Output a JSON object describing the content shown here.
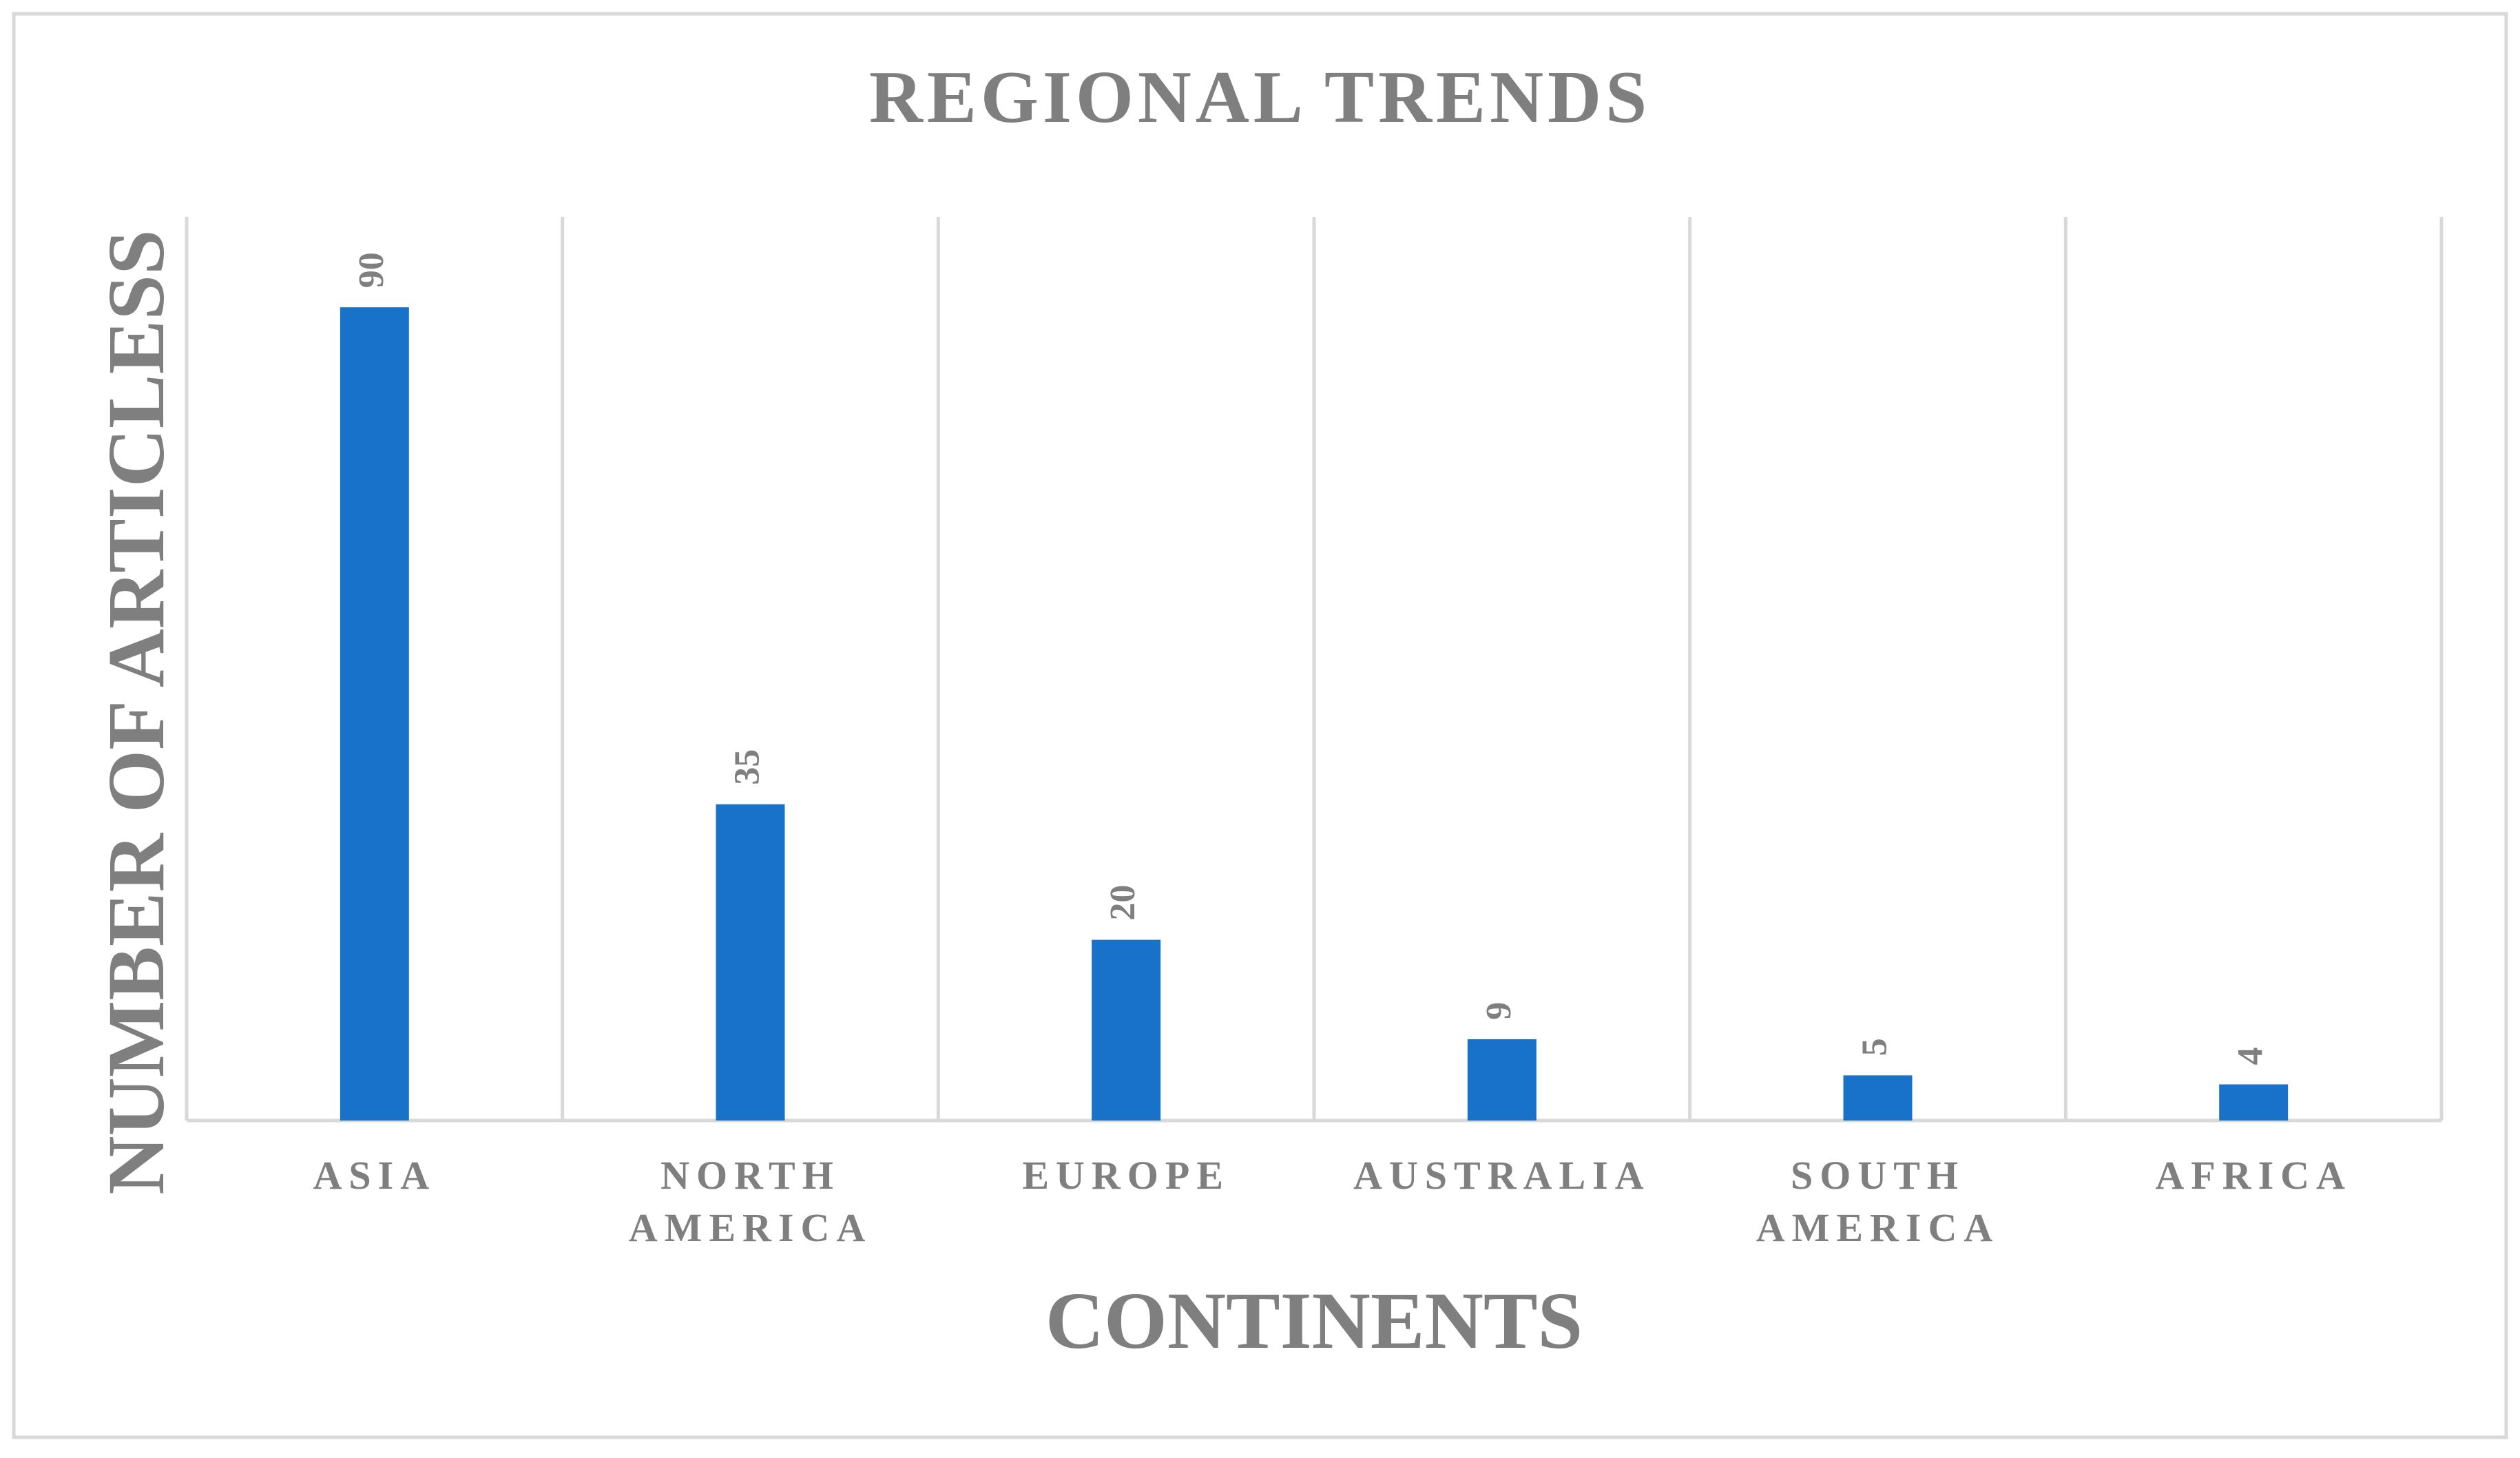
{
  "chart_data": {
    "type": "bar",
    "title": "REGIONAL TRENDS",
    "x_label": "CONTINENTS",
    "y_label": "NUMBER OF ARTICLESS",
    "categories": [
      "ASIA",
      "NORTH AMERICA",
      "EUROPE",
      "AUSTRALIA",
      "SOUTH AMERICA",
      "AFRICA"
    ],
    "values": [
      90,
      35,
      20,
      9,
      5,
      4
    ],
    "color": "#1872c9",
    "ylim": [
      0,
      100
    ],
    "grid": true
  }
}
